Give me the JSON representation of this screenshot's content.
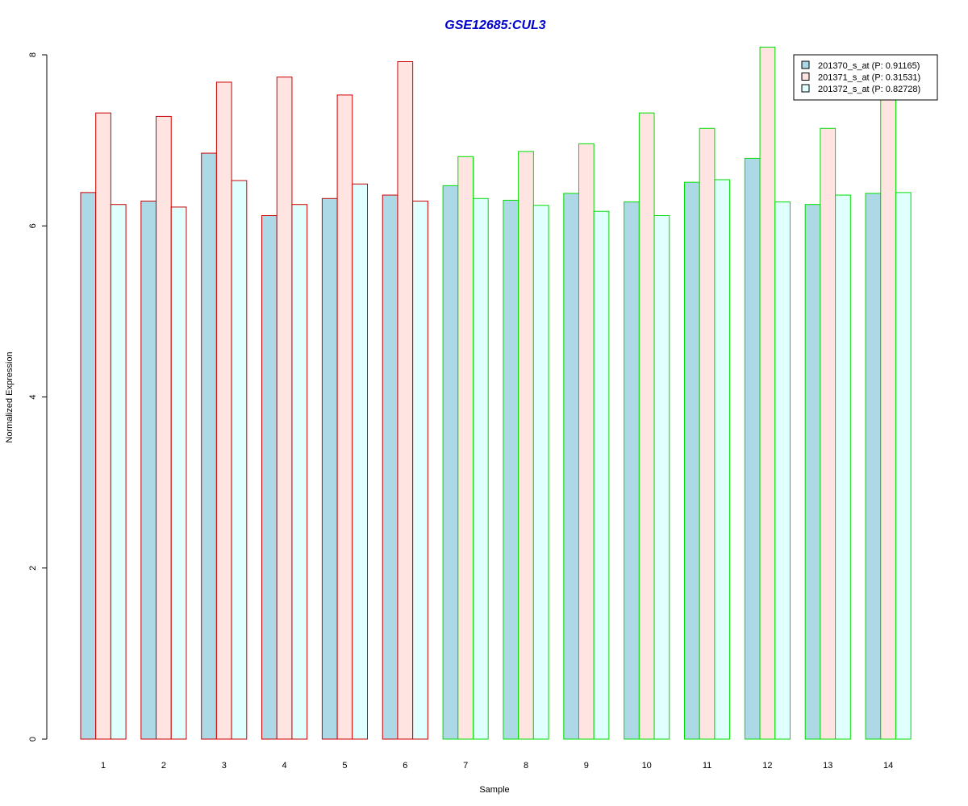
{
  "chart_data": {
    "type": "bar",
    "title": "GSE12685:CUL3",
    "title_color": "#0000CC",
    "xlabel": "Sample",
    "ylabel": "Normalized Expression",
    "ylim": [
      0,
      8
    ],
    "yticks": [
      0,
      2,
      4,
      6,
      8
    ],
    "grid": false,
    "legend_position": "top-right",
    "categories": [
      "1",
      "2",
      "3",
      "4",
      "5",
      "6",
      "7",
      "8",
      "9",
      "10",
      "11",
      "12",
      "13",
      "14"
    ],
    "group_border_colors": [
      "#CC0000",
      "#CC0000",
      "#CC0000",
      "#CC0000",
      "#CC0000",
      "#CC0000",
      "#00DD00",
      "#00DD00",
      "#00DD00",
      "#00DD00",
      "#00DD00",
      "#00DD00",
      "#00DD00",
      "#00DD00"
    ],
    "series": [
      {
        "name": "201370_s_at (P: 0.91165)",
        "fill": "#ADD8E6",
        "values": [
          6.39,
          6.29,
          6.85,
          6.12,
          6.32,
          6.36,
          6.47,
          6.3,
          6.38,
          6.28,
          6.51,
          6.79,
          6.25,
          6.38
        ]
      },
      {
        "name": "201371_s_at (P: 0.31531)",
        "fill": "#FFE4E1",
        "values": [
          7.32,
          7.28,
          7.68,
          7.74,
          7.53,
          7.92,
          6.81,
          6.87,
          6.96,
          7.32,
          7.14,
          8.09,
          7.14,
          7.51
        ]
      },
      {
        "name": "201372_s_at (P: 0.82728)",
        "fill": "#E0FFFF",
        "values": [
          6.25,
          6.22,
          6.53,
          6.25,
          6.49,
          6.29,
          6.32,
          6.24,
          6.17,
          6.12,
          6.54,
          6.28,
          6.36,
          6.39
        ]
      }
    ]
  }
}
